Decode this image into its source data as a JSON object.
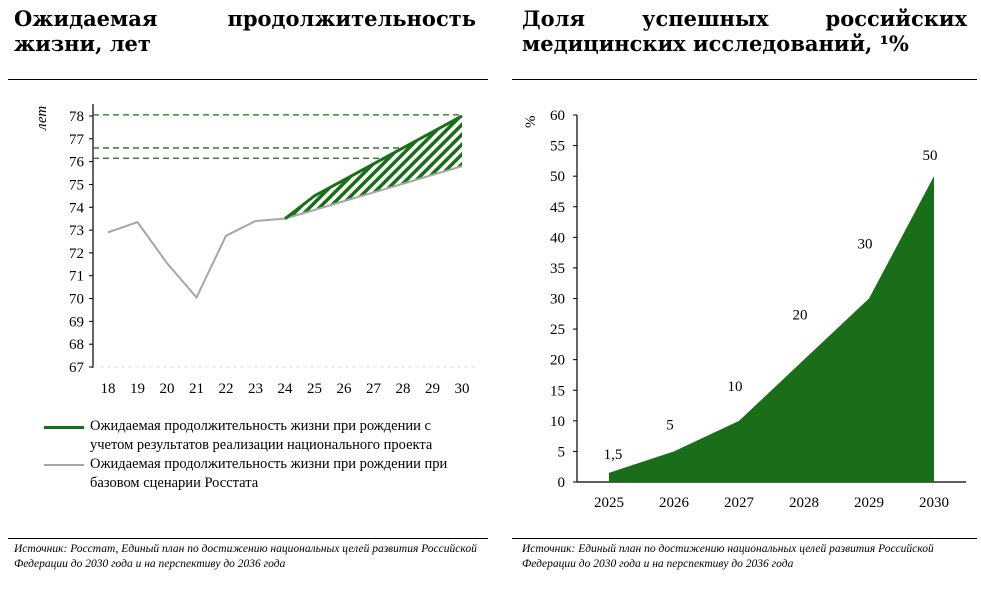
{
  "left": {
    "title": "Ожидаемая продолжительность жизни, лет",
    "source": "Источник: Росстат, Единый план по достижению национальных целей развития Российской Федерации до 2030 года и на перспективу до 2036 года",
    "legend": [
      {
        "label": "Ожидаемая продолжительность жизни при рождении с учетом результатов реализации национального проекта",
        "color": "#1a6e1a"
      },
      {
        "label": "Ожидаемая продолжительность жизни при рождении при базовом сценарии Росстата",
        "color": "#a6a6a6"
      }
    ]
  },
  "right": {
    "title": "Доля успешных российских медицинских исследований, ¹%",
    "source": "Источник: Единый план по достижению национальных целей развития Российской Федерации до 2030 года и на перспективу до 2036 года"
  },
  "chart_data": [
    {
      "type": "line",
      "ylabel": "лет",
      "ylim": [
        67,
        78
      ],
      "yticks": [
        67,
        68,
        69,
        70,
        71,
        72,
        73,
        74,
        75,
        76,
        77,
        78
      ],
      "x": [
        "18",
        "19",
        "20",
        "21",
        "22",
        "23",
        "24",
        "25",
        "26",
        "27",
        "28",
        "29",
        "30"
      ],
      "series": [
        {
          "name": "Ожидаемая продолжительность жизни при рождении с учетом результатов реализации национального проекта",
          "color": "#1a6e1a",
          "values": [
            null,
            null,
            null,
            null,
            null,
            null,
            73.5,
            74.5,
            75.2,
            75.9,
            76.6,
            77.3,
            78.0
          ]
        },
        {
          "name": "Ожидаемая продолжительность жизни при рождении при базовом сценарии Росстата",
          "color": "#a6a6a6",
          "values": [
            72.9,
            73.35,
            71.55,
            70.05,
            72.75,
            73.4,
            73.5,
            73.88,
            74.27,
            74.65,
            75.03,
            75.42,
            75.8
          ]
        }
      ],
      "reference_lines": [
        78.05,
        76.6,
        76.15
      ],
      "fill_between": "hatched green"
    },
    {
      "type": "area",
      "ylabel": "%",
      "ylim": [
        0,
        60
      ],
      "yticks": [
        0,
        5,
        10,
        15,
        20,
        25,
        30,
        35,
        40,
        45,
        50,
        55,
        60
      ],
      "categories": [
        "2025",
        "2026",
        "2027",
        "2028",
        "2029",
        "2030"
      ],
      "values": [
        1.5,
        5,
        10,
        20,
        30,
        50
      ],
      "data_labels": [
        "1,5",
        "5",
        "10",
        "20",
        "30",
        "50"
      ],
      "color": "#1a6e1a"
    }
  ]
}
